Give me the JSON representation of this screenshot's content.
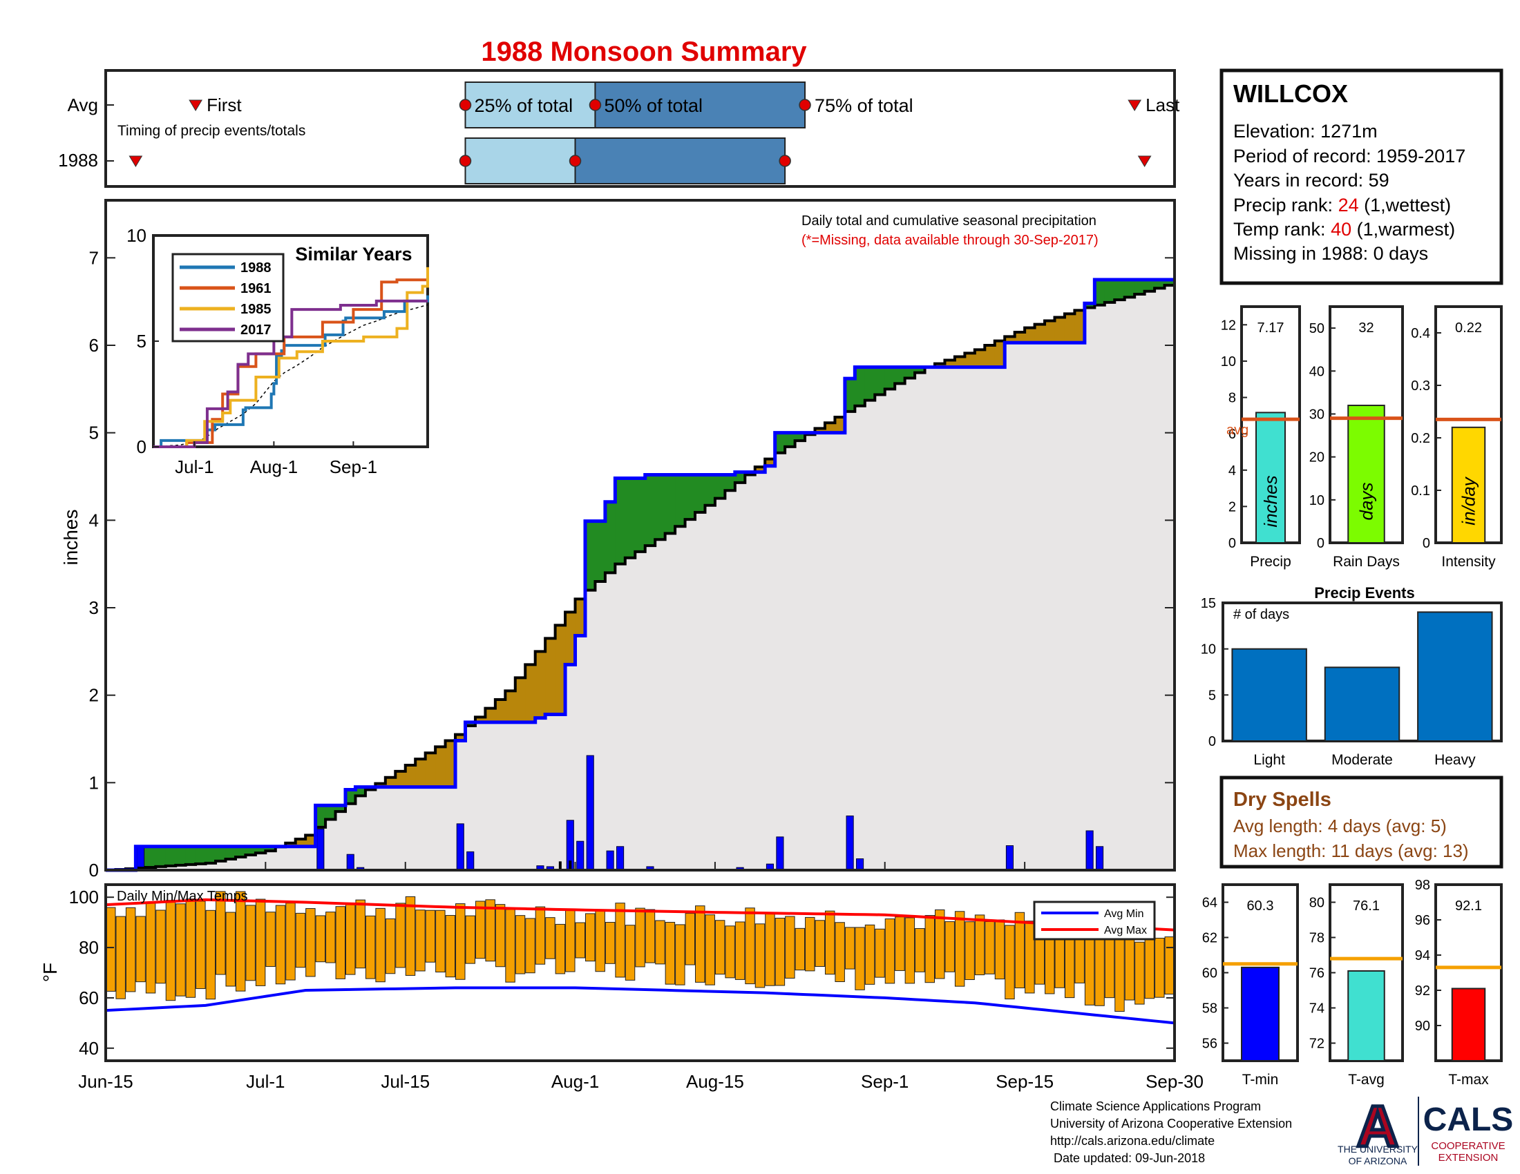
{
  "page": {
    "title": "1988 Monsoon Summary",
    "title_color": "#e00000"
  },
  "timing": {
    "row_labels": [
      "Avg",
      "1988"
    ],
    "first_label": "First",
    "last_label": "Last",
    "caption": "Timing of precip events/totals",
    "pct_labels": [
      "25% of total",
      "50% of total",
      "75% of total"
    ],
    "colors": {
      "light": "#a9d5e8",
      "dark": "#4a82b5",
      "marker": "#e00000"
    }
  },
  "station": {
    "name": "WILLCOX",
    "elevation_label": "Elevation: 1271m",
    "period_label": "Period of record: 1959-2017",
    "years_label": "Years in record: 59",
    "precip_rank_prefix": "Precip rank: ",
    "precip_rank": "24",
    "precip_rank_suffix": " (1,wettest)",
    "temp_rank_prefix": "Temp rank: ",
    "temp_rank": "40",
    "temp_rank_suffix": " (1,warmest)",
    "missing_label": "Missing in 1988: 0 days"
  },
  "main_chart": {
    "caption": "Daily total and cumulative seasonal precipitation",
    "note": "(*=Missing, data available through 30-Sep-2017)",
    "ylabel": "inches",
    "xtick_labels": [
      "Jun-15",
      "Jul-1",
      "Jul-15",
      "Aug-1",
      "Aug-15",
      "Sep-1",
      "Sep-15",
      "Sep-30"
    ],
    "ytick_labels": [
      "0",
      "1",
      "2",
      "3",
      "4",
      "5",
      "6",
      "7"
    ]
  },
  "inset": {
    "title": "Similar Years",
    "xtick_labels": [
      "Jul-1",
      "Aug-1",
      "Sep-1"
    ],
    "ytick_labels": [
      "0",
      "5",
      "10"
    ],
    "legend": [
      {
        "name": "1988",
        "color": "#1f77b4"
      },
      {
        "name": "1961",
        "color": "#d95319"
      },
      {
        "name": "1985",
        "color": "#edb120"
      },
      {
        "name": "2017",
        "color": "#7e2f8e"
      }
    ]
  },
  "temps": {
    "title": "Daily Min/Max Temps",
    "ylabel": "°F",
    "ytick_labels": [
      "40",
      "60",
      "80",
      "100"
    ],
    "legend_min": "Avg Min",
    "legend_max": "Avg Max",
    "colors": {
      "bar": "#f5a000",
      "min": "#0000ff",
      "max": "#ff0000"
    }
  },
  "summary_bars": [
    {
      "label": "Precip",
      "value_text": "7.17",
      "unit": "inches",
      "avg_label": "avg",
      "color": "#40e0d0",
      "ytick_labels": [
        "0",
        "2",
        "4",
        "6",
        "8",
        "10",
        "12"
      ]
    },
    {
      "label": "Rain Days",
      "value_text": "32",
      "unit": "days",
      "color": "#7cfc00",
      "ytick_labels": [
        "0",
        "10",
        "20",
        "30",
        "40",
        "50"
      ]
    },
    {
      "label": "Intensity",
      "value_text": "0.22",
      "unit": "in/day",
      "color": "#ffd700",
      "ytick_labels": [
        "0",
        "0.1",
        "0.2",
        "0.3",
        "0.4"
      ]
    }
  ],
  "events": {
    "title": "Precip Events",
    "caption": "# of days",
    "categories": [
      "Light",
      "Moderate",
      "Heavy"
    ],
    "ytick_labels": [
      "0",
      "5",
      "10",
      "15"
    ],
    "color": "#0070c0"
  },
  "dry_spells": {
    "title": "Dry Spells",
    "avg_length": "Avg length: 4 days (avg: 5)",
    "max_length": "Max length: 11 days (avg: 13)",
    "color": "#8b4513"
  },
  "temp_summary": [
    {
      "label": "T-min",
      "value_text": "60.3",
      "color": "#0000ff",
      "ytick_labels": [
        "56",
        "58",
        "60",
        "62",
        "64"
      ]
    },
    {
      "label": "T-avg",
      "value_text": "76.1",
      "color": "#40e0d0",
      "ytick_labels": [
        "72",
        "74",
        "76",
        "78",
        "80"
      ]
    },
    {
      "label": "T-max",
      "value_text": "92.1",
      "color": "#ff0000",
      "ytick_labels": [
        "90",
        "92",
        "94",
        "96",
        "98"
      ]
    }
  ],
  "footer": {
    "lines": [
      "Climate Science Applications Program",
      "University of Arizona Cooperative Extension",
      "http://cals.arizona.edu/climate",
      " Date updated: 09-Jun-2018"
    ],
    "logo_a": "A",
    "logo_ua_lines": [
      "THE UNIVERSITY",
      "OF ARIZONA"
    ],
    "logo_cals": "CALS",
    "logo_cals_lines": [
      "COOPERATIVE",
      "EXTENSION"
    ]
  },
  "chart_data": [
    {
      "type": "timing",
      "rows": [
        {
          "name": "Avg",
          "first": "2018-06-24",
          "p25": "2018-07-21",
          "p50": "2018-08-03",
          "p75": "2018-08-24",
          "last": "2018-09-26"
        },
        {
          "name": "1988",
          "first": "2018-06-18",
          "p25": "2018-07-21",
          "p50": "2018-08-01",
          "p75": "2018-08-22",
          "last": "2018-09-27"
        }
      ]
    },
    {
      "type": "bar+step",
      "title": "Daily total and cumulative seasonal precipitation",
      "x_dates": [
        "2018-06-15",
        "2018-09-30"
      ],
      "ylabel": "inches",
      "ylim": [
        0,
        7.5
      ],
      "daily_precip": [
        {
          "date": "2018-06-18",
          "value": 0.27
        },
        {
          "date": "2018-07-06",
          "value": 0.47
        },
        {
          "date": "2018-07-09",
          "value": 0.18
        },
        {
          "date": "2018-07-10",
          "value": 0.03
        },
        {
          "date": "2018-07-20",
          "value": 0.53
        },
        {
          "date": "2018-07-21",
          "value": 0.21
        },
        {
          "date": "2018-07-28",
          "value": 0.05
        },
        {
          "date": "2018-07-29",
          "value": 0.04
        },
        {
          "date": "2018-07-31",
          "value": 0.57
        },
        {
          "date": "2018-08-01",
          "value": 0.33
        },
        {
          "date": "2018-08-02",
          "value": 1.31
        },
        {
          "date": "2018-08-04",
          "value": 0.22
        },
        {
          "date": "2018-08-05",
          "value": 0.27
        },
        {
          "date": "2018-08-08",
          "value": 0.04
        },
        {
          "date": "2018-08-17",
          "value": 0.03
        },
        {
          "date": "2018-08-20",
          "value": 0.07
        },
        {
          "date": "2018-08-21",
          "value": 0.38
        },
        {
          "date": "2018-08-28",
          "value": 0.62
        },
        {
          "date": "2018-08-29",
          "value": 0.13
        },
        {
          "date": "2018-09-13",
          "value": 0.28
        },
        {
          "date": "2018-09-21",
          "value": 0.45
        },
        {
          "date": "2018-09-22",
          "value": 0.27
        }
      ],
      "avg_daily_precip": [
        {
          "date": "2018-07-30",
          "value": 0.1
        },
        {
          "date": "2018-07-31",
          "value": 0.11
        }
      ],
      "avg_cumulative": [
        {
          "date": "2018-06-15",
          "value": 0.0
        },
        {
          "date": "2018-06-25",
          "value": 0.08
        },
        {
          "date": "2018-07-01",
          "value": 0.22
        },
        {
          "date": "2018-07-05",
          "value": 0.4
        },
        {
          "date": "2018-07-10",
          "value": 0.85
        },
        {
          "date": "2018-07-15",
          "value": 1.2
        },
        {
          "date": "2018-07-20",
          "value": 1.55
        },
        {
          "date": "2018-07-25",
          "value": 2.05
        },
        {
          "date": "2018-08-01",
          "value": 3.1
        },
        {
          "date": "2018-08-05",
          "value": 3.5
        },
        {
          "date": "2018-08-10",
          "value": 3.85
        },
        {
          "date": "2018-08-15",
          "value": 4.25
        },
        {
          "date": "2018-08-20",
          "value": 4.7
        },
        {
          "date": "2018-08-25",
          "value": 5.05
        },
        {
          "date": "2018-09-01",
          "value": 5.5
        },
        {
          "date": "2018-09-05",
          "value": 5.75
        },
        {
          "date": "2018-09-10",
          "value": 5.95
        },
        {
          "date": "2018-09-15",
          "value": 6.2
        },
        {
          "date": "2018-09-20",
          "value": 6.4
        },
        {
          "date": "2018-09-25",
          "value": 6.55
        },
        {
          "date": "2018-09-30",
          "value": 6.72
        }
      ]
    },
    {
      "type": "line",
      "title": "Similar Years",
      "x_dates": [
        "2018-06-15",
        "2018-09-30"
      ],
      "ylim": [
        0,
        10
      ],
      "series": [
        {
          "name": "1988",
          "points": [
            [
              "2018-06-15",
              0
            ],
            [
              "2018-06-18",
              0.3
            ],
            [
              "2018-07-06",
              0.8
            ],
            [
              "2018-07-09",
              1.05
            ],
            [
              "2018-07-20",
              1.75
            ],
            [
              "2018-07-21",
              1.85
            ],
            [
              "2018-07-31",
              2.5
            ],
            [
              "2018-08-01",
              3.0
            ],
            [
              "2018-08-02",
              4.3
            ],
            [
              "2018-08-04",
              4.55
            ],
            [
              "2018-08-05",
              4.8
            ],
            [
              "2018-08-21",
              5.3
            ],
            [
              "2018-08-28",
              5.95
            ],
            [
              "2018-08-29",
              6.1
            ],
            [
              "2018-09-13",
              6.4
            ],
            [
              "2018-09-21",
              6.9
            ],
            [
              "2018-09-30",
              7.17
            ]
          ]
        },
        {
          "name": "1961",
          "points": [
            [
              "2018-06-15",
              0
            ],
            [
              "2018-06-28",
              0.2
            ],
            [
              "2018-07-08",
              1.3
            ],
            [
              "2018-07-12",
              2.5
            ],
            [
              "2018-07-18",
              3.8
            ],
            [
              "2018-07-25",
              4.4
            ],
            [
              "2018-08-05",
              5.2
            ],
            [
              "2018-08-20",
              5.9
            ],
            [
              "2018-09-01",
              6.5
            ],
            [
              "2018-09-12",
              7.8
            ],
            [
              "2018-09-18",
              7.9
            ],
            [
              "2018-09-30",
              7.9
            ]
          ]
        },
        {
          "name": "1985",
          "points": [
            [
              "2018-06-15",
              0
            ],
            [
              "2018-06-28",
              0.3
            ],
            [
              "2018-07-05",
              1.2
            ],
            [
              "2018-07-12",
              1.6
            ],
            [
              "2018-07-15",
              2.2
            ],
            [
              "2018-07-25",
              3.3
            ],
            [
              "2018-08-03",
              4.2
            ],
            [
              "2018-08-10",
              4.5
            ],
            [
              "2018-08-20",
              5.0
            ],
            [
              "2018-09-05",
              5.2
            ],
            [
              "2018-09-18",
              5.6
            ],
            [
              "2018-09-22",
              7.3
            ],
            [
              "2018-09-28",
              7.6
            ],
            [
              "2018-09-30",
              8.5
            ]
          ]
        },
        {
          "name": "2017",
          "points": [
            [
              "2018-06-15",
              0
            ],
            [
              "2018-07-01",
              0.2
            ],
            [
              "2018-07-06",
              1.8
            ],
            [
              "2018-07-14",
              2.6
            ],
            [
              "2018-07-18",
              3.9
            ],
            [
              "2018-07-22",
              4.4
            ],
            [
              "2018-08-01",
              5.2
            ],
            [
              "2018-08-08",
              6.5
            ],
            [
              "2018-08-22",
              6.5
            ],
            [
              "2018-08-27",
              6.7
            ],
            [
              "2018-09-10",
              6.9
            ],
            [
              "2018-09-30",
              6.9
            ]
          ]
        }
      ]
    },
    {
      "type": "bar+line",
      "title": "Daily Min/Max Temps",
      "ylabel": "°F",
      "ylim": [
        35,
        105
      ],
      "avg_min": [
        [
          "2018-06-15",
          55
        ],
        [
          "2018-06-25",
          57
        ],
        [
          "2018-07-05",
          63
        ],
        [
          "2018-07-20",
          64
        ],
        [
          "2018-08-01",
          64
        ],
        [
          "2018-08-20",
          62
        ],
        [
          "2018-09-01",
          60
        ],
        [
          "2018-09-10",
          58
        ],
        [
          "2018-09-20",
          54
        ],
        [
          "2018-09-30",
          50
        ]
      ],
      "avg_max": [
        [
          "2018-06-15",
          97
        ],
        [
          "2018-06-25",
          99
        ],
        [
          "2018-07-05",
          98
        ],
        [
          "2018-07-20",
          96
        ],
        [
          "2018-08-01",
          95
        ],
        [
          "2018-08-15",
          94
        ],
        [
          "2018-09-01",
          93
        ],
        [
          "2018-09-15",
          90
        ],
        [
          "2018-09-30",
          87
        ]
      ]
    },
    {
      "type": "bar",
      "title": "Precip",
      "categories": [
        "Precip"
      ],
      "values": [
        7.17
      ],
      "avg": 6.8,
      "ylim": [
        0,
        13
      ]
    },
    {
      "type": "bar",
      "title": "Rain Days",
      "categories": [
        "Rain Days"
      ],
      "values": [
        32
      ],
      "avg": 29,
      "ylim": [
        0,
        55
      ]
    },
    {
      "type": "bar",
      "title": "Intensity",
      "categories": [
        "Intensity"
      ],
      "values": [
        0.22
      ],
      "avg": 0.235,
      "ylim": [
        0,
        0.45
      ]
    },
    {
      "type": "bar",
      "title": "Precip Events",
      "categories": [
        "Light",
        "Moderate",
        "Heavy"
      ],
      "values": [
        10,
        8,
        14
      ],
      "ylim": [
        0,
        15
      ]
    },
    {
      "type": "bar",
      "title": "T-min",
      "categories": [
        "T-min"
      ],
      "values": [
        60.3
      ],
      "avg": 60.5,
      "ylim": [
        55,
        65
      ]
    },
    {
      "type": "bar",
      "title": "T-avg",
      "categories": [
        "T-avg"
      ],
      "values": [
        76.1
      ],
      "avg": 76.8,
      "ylim": [
        71,
        81
      ]
    },
    {
      "type": "bar",
      "title": "T-max",
      "categories": [
        "T-max"
      ],
      "values": [
        92.1
      ],
      "avg": 93.3,
      "ylim": [
        88,
        98
      ]
    }
  ]
}
